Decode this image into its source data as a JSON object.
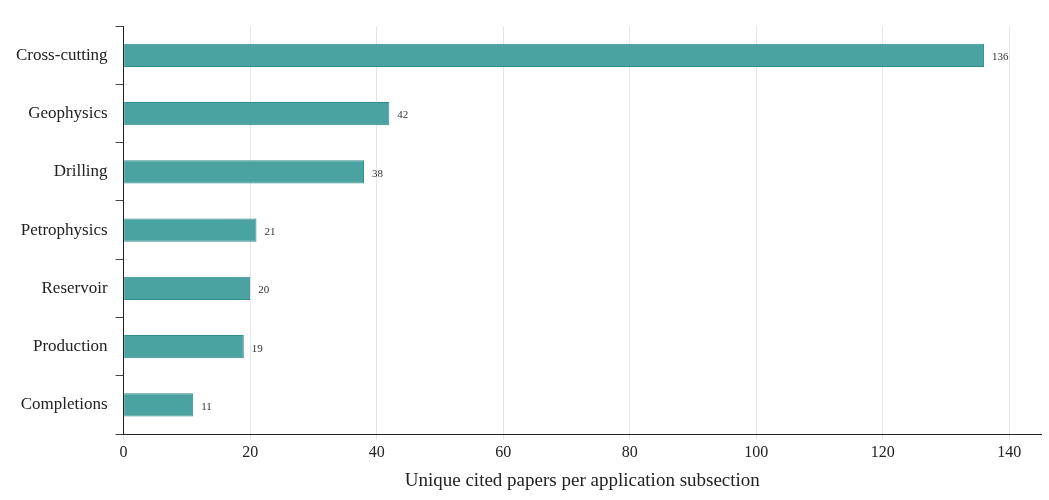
{
  "chart_data": {
    "type": "bar",
    "orientation": "horizontal",
    "xlabel": "Unique cited papers per application subsection",
    "categories": [
      "Cross-cutting",
      "Geophysics",
      "Drilling",
      "Petrophysics",
      "Reservoir",
      "Production",
      "Completions"
    ],
    "values": [
      136,
      42,
      38,
      21,
      20,
      19,
      11
    ],
    "color": "#4aa3a0",
    "xlim": [
      0,
      145
    ],
    "xticks": [
      0,
      20,
      40,
      60,
      80,
      100,
      120,
      140
    ],
    "grid": "x",
    "data_labels": true
  }
}
